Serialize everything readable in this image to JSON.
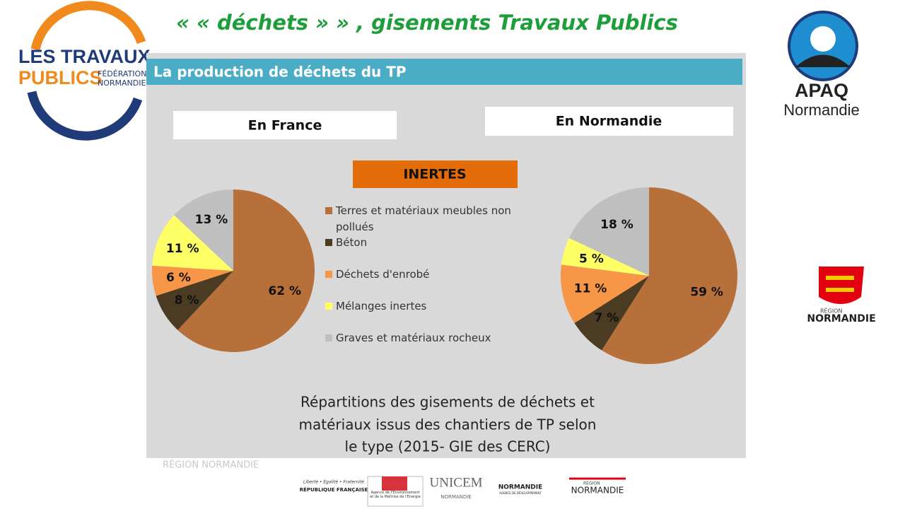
{
  "header": {
    "title": "« « déchets » » , gisements Travaux Publics"
  },
  "logos": {
    "ftp_line1": "LES TRAVAUX",
    "ftp_line2": "PUBLICS",
    "ftp_line3": "FÉDÉRATION",
    "ftp_line4": "NORMANDIE",
    "apaq_line1": "APAQ",
    "apaq_line2": "Normandie",
    "region_line1": "RÉGION",
    "region_line2": "NORMANDIE"
  },
  "panel": {
    "heading": "La production de déchets du TP",
    "category": "INERTES",
    "caption": [
      "Répartitions des gisements de déchets et",
      "matériaux issus des chantiers de TP selon",
      "le type (2015- GIE des CERC)"
    ],
    "watermark": "RÉGION NORMANDIE"
  },
  "chart_data": [
    {
      "type": "pie",
      "title": "En France",
      "categories": [
        "Terres et matériaux meubles non pollués",
        "Béton",
        "Déchets d'enrobé",
        "Mélanges inertes",
        "Graves et matériaux rocheux"
      ],
      "values": [
        62,
        8,
        6,
        11,
        13
      ],
      "value_labels": [
        "62 %",
        "8 %",
        "6 %",
        "11 %",
        "13 %"
      ],
      "colors": [
        "#b8703a",
        "#4a3b22",
        "#f79646",
        "#ffff66",
        "#bfbfbf"
      ]
    },
    {
      "type": "pie",
      "title": "En Normandie",
      "values": [
        59,
        7,
        11,
        5,
        18
      ],
      "value_labels": [
        "59 %",
        "7 %",
        "11 %",
        "5 %",
        "18 %"
      ],
      "colors": [
        "#b8703a",
        "#4a3b22",
        "#f79646",
        "#ffff66",
        "#bfbfbf"
      ]
    }
  ],
  "footer": {
    "rf_motto": "Liberté • Égalité • Fraternité",
    "rf_name": "RÉPUBLIQUE FRANÇAISE",
    "ademe": "Agence de l'Environnement et de la Maîtrise de l'Energie",
    "unicem": "UNICEM",
    "unicem_sub": "NORMANDIE",
    "adn": "NORMANDIE",
    "adn_sub": "AGENCE DE DÉVELOPPEMENT",
    "region_small": "RÉGION",
    "region_big": "NORMANDIE"
  }
}
